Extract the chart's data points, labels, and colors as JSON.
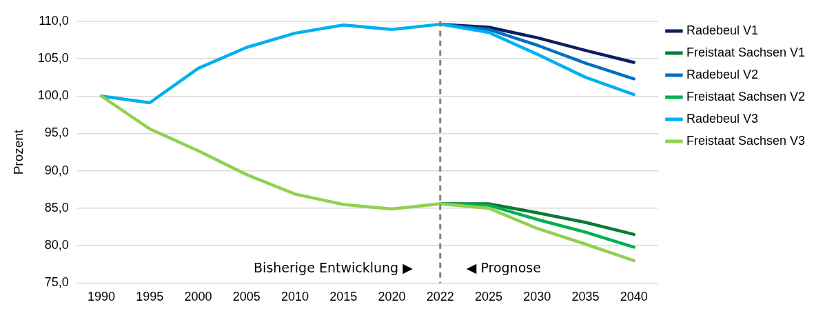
{
  "chart_data": {
    "type": "line",
    "ylabel": "Prozent",
    "categories": [
      "1990",
      "1995",
      "2000",
      "2005",
      "2010",
      "2015",
      "2020",
      "2022",
      "2025",
      "2030",
      "2035",
      "2040"
    ],
    "series": [
      {
        "name": "Radebeul V1",
        "color": "#0b1f5c",
        "values": [
          null,
          null,
          null,
          null,
          null,
          null,
          null,
          109.6,
          109.2,
          107.8,
          106.1,
          104.5
        ]
      },
      {
        "name": "Freistaat Sachsen V1",
        "color": "#0a7a35",
        "values": [
          null,
          null,
          null,
          null,
          null,
          null,
          null,
          85.6,
          85.6,
          84.4,
          83.1,
          81.5
        ]
      },
      {
        "name": "Radebeul V2",
        "color": "#0070c0",
        "values": [
          null,
          null,
          null,
          null,
          null,
          null,
          null,
          109.6,
          108.9,
          106.8,
          104.4,
          102.3
        ]
      },
      {
        "name": "Freistaat Sachsen V2",
        "color": "#00b050",
        "values": [
          null,
          null,
          null,
          null,
          null,
          null,
          null,
          85.6,
          85.4,
          83.5,
          81.8,
          79.8
        ]
      },
      {
        "name": "Radebeul V3",
        "color": "#00b0f0",
        "values": [
          100,
          99.1,
          103.7,
          106.5,
          108.4,
          109.5,
          108.9,
          109.6,
          108.5,
          105.6,
          102.5,
          100.2
        ]
      },
      {
        "name": "Freistaat Sachsen V3",
        "color": "#92d050",
        "values": [
          100,
          95.6,
          92.7,
          89.5,
          86.9,
          85.5,
          84.9,
          85.6,
          85.0,
          82.3,
          80.2,
          78.0
        ]
      }
    ],
    "ylim": [
      75,
      110
    ],
    "yticks": [
      {
        "value": 75,
        "label": "75,0"
      },
      {
        "value": 80,
        "label": "80,0"
      },
      {
        "value": 85,
        "label": "85,0"
      },
      {
        "value": 90,
        "label": "90,0"
      },
      {
        "value": 95,
        "label": "95,0"
      },
      {
        "value": 100,
        "label": "100,0"
      },
      {
        "value": 105,
        "label": "105,0"
      },
      {
        "value": 110,
        "label": "110,0"
      }
    ],
    "grid": "y",
    "legend": "right",
    "marker": "none",
    "line_style": "solid",
    "ref_lines": [
      {
        "axis": "x",
        "value": "2022",
        "color": "#808080",
        "line_style": "dashed"
      }
    ],
    "annotations": [
      "Bisherige Entwicklung ▶",
      "◀ Prognose"
    ]
  }
}
